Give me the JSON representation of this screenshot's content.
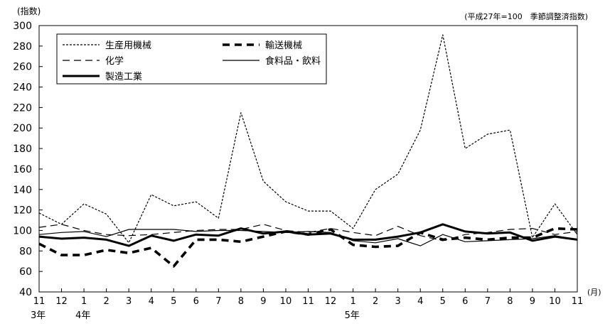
{
  "chart_data": {
    "type": "line",
    "ylabel": "(指数)",
    "xunit": "(月)",
    "note": "(平成27年=100　季節調整済指数)",
    "ylim": [
      40,
      300
    ],
    "yticks": [
      40,
      60,
      80,
      100,
      120,
      140,
      160,
      180,
      200,
      220,
      240,
      260,
      280,
      300
    ],
    "categories": [
      "11",
      "12",
      "1",
      "2",
      "3",
      "4",
      "5",
      "6",
      "7",
      "8",
      "9",
      "10",
      "11",
      "12",
      "1",
      "2",
      "3",
      "4",
      "5",
      "6",
      "7",
      "8",
      "9",
      "10",
      "11"
    ],
    "year_labels": [
      {
        "index": 0,
        "text": "3年"
      },
      {
        "index": 2,
        "text": "4年"
      },
      {
        "index": 14,
        "text": "5年"
      }
    ],
    "legend_placement": "top-left",
    "grid": false,
    "series": [
      {
        "name": "生産用機械",
        "style": "dotted",
        "color": "#000000",
        "values": [
          117,
          106,
          126,
          116,
          88,
          135,
          124,
          128,
          112,
          215,
          148,
          128,
          119,
          119,
          102,
          140,
          155,
          198,
          291,
          180,
          194,
          198,
          93,
          126,
          96
        ]
      },
      {
        "name": "輸送機械",
        "style": "bold-dashed",
        "color": "#000000",
        "values": [
          87,
          76,
          76,
          81,
          78,
          83,
          65,
          91,
          91,
          89,
          94,
          99,
          96,
          101,
          86,
          84,
          85,
          98,
          91,
          93,
          91,
          93,
          93,
          102,
          101
        ]
      },
      {
        "name": "化学",
        "style": "dashed",
        "color": "#000000",
        "values": [
          103,
          106,
          100,
          96,
          95,
          96,
          98,
          100,
          101,
          101,
          106,
          100,
          98,
          102,
          98,
          95,
          104,
          95,
          90,
          96,
          98,
          101,
          102,
          96,
          99
        ]
      },
      {
        "name": "食料品・飲料",
        "style": "thin-solid",
        "color": "#000000",
        "values": [
          96,
          98,
          99,
          94,
          101,
          101,
          101,
          99,
          100,
          100,
          99,
          98,
          99,
          98,
          90,
          88,
          92,
          85,
          96,
          89,
          90,
          91,
          92,
          95,
          91
        ]
      },
      {
        "name": "製造工業",
        "style": "bold-solid",
        "color": "#000000",
        "values": [
          94,
          92,
          93,
          91,
          85,
          95,
          90,
          96,
          95,
          102,
          97,
          99,
          96,
          97,
          91,
          91,
          94,
          98,
          106,
          99,
          97,
          98,
          90,
          94,
          91
        ]
      }
    ]
  }
}
